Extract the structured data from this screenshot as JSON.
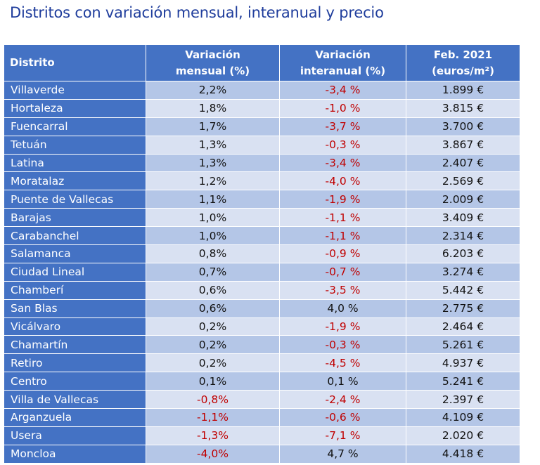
{
  "title": "Distritos con variación mensual, interanual y precio",
  "colors": {
    "header_bg": "#4472c4",
    "row_dark": "#b4c6e7",
    "row_light": "#d9e1f2",
    "negative": "#c00000",
    "title": "#1f3d9c"
  },
  "table": {
    "headers": {
      "district": "Distrito",
      "monthly_line1": "Variación",
      "monthly_line2": "mensual (%)",
      "yearly_line1": "Variación",
      "yearly_line2": "interanual (%)",
      "price_line1": "Feb. 2021",
      "price_line2": "(euros/m²)"
    },
    "rows": [
      {
        "district": "Villaverde",
        "monthly": "2,2%",
        "yearly": "-3,4 %",
        "price": "1.899 €"
      },
      {
        "district": "Hortaleza",
        "monthly": "1,8%",
        "yearly": "-1,0 %",
        "price": "3.815 €"
      },
      {
        "district": "Fuencarral",
        "monthly": "1,7%",
        "yearly": "-3,7 %",
        "price": "3.700 €"
      },
      {
        "district": "Tetuán",
        "monthly": "1,3%",
        "yearly": "-0,3 %",
        "price": "3.867 €"
      },
      {
        "district": "Latina",
        "monthly": "1,3%",
        "yearly": "-3,4 %",
        "price": "2.407 €"
      },
      {
        "district": "Moratalaz",
        "monthly": "1,2%",
        "yearly": "-4,0 %",
        "price": "2.569 €"
      },
      {
        "district": "Puente de Vallecas",
        "monthly": "1,1%",
        "yearly": "-1,9 %",
        "price": "2.009 €"
      },
      {
        "district": "Barajas",
        "monthly": "1,0%",
        "yearly": "-1,1 %",
        "price": "3.409 €"
      },
      {
        "district": "Carabanchel",
        "monthly": "1,0%",
        "yearly": "-1,1 %",
        "price": "2.314 €"
      },
      {
        "district": "Salamanca",
        "monthly": "0,8%",
        "yearly": "-0,9 %",
        "price": "6.203 €"
      },
      {
        "district": "Ciudad Lineal",
        "monthly": "0,7%",
        "yearly": "-0,7 %",
        "price": "3.274 €"
      },
      {
        "district": "Chamberí",
        "monthly": "0,6%",
        "yearly": "-3,5 %",
        "price": "5.442 €"
      },
      {
        "district": "San Blas",
        "monthly": "0,6%",
        "yearly": "4,0 %",
        "price": "2.775 €"
      },
      {
        "district": "Vicálvaro",
        "monthly": "0,2%",
        "yearly": "-1,9 %",
        "price": "2.464 €"
      },
      {
        "district": "Chamartín",
        "monthly": "0,2%",
        "yearly": "-0,3 %",
        "price": "5.261 €"
      },
      {
        "district": "Retiro",
        "monthly": "0,2%",
        "yearly": "-4,5 %",
        "price": "4.937 €"
      },
      {
        "district": "Centro",
        "monthly": "0,1%",
        "yearly": "0,1 %",
        "price": "5.241 €"
      },
      {
        "district": "Villa de Vallecas",
        "monthly": "-0,8%",
        "yearly": "-2,4 %",
        "price": "2.397 €"
      },
      {
        "district": "Arganzuela",
        "monthly": "-1,1%",
        "yearly": "-0,6 %",
        "price": "4.109 €"
      },
      {
        "district": "Usera",
        "monthly": "-1,3%",
        "yearly": "-7,1 %",
        "price": "2.020 €"
      },
      {
        "district": "Moncloa",
        "monthly": "-4,0%",
        "yearly": "4,7 %",
        "price": "4.418 €"
      }
    ]
  }
}
